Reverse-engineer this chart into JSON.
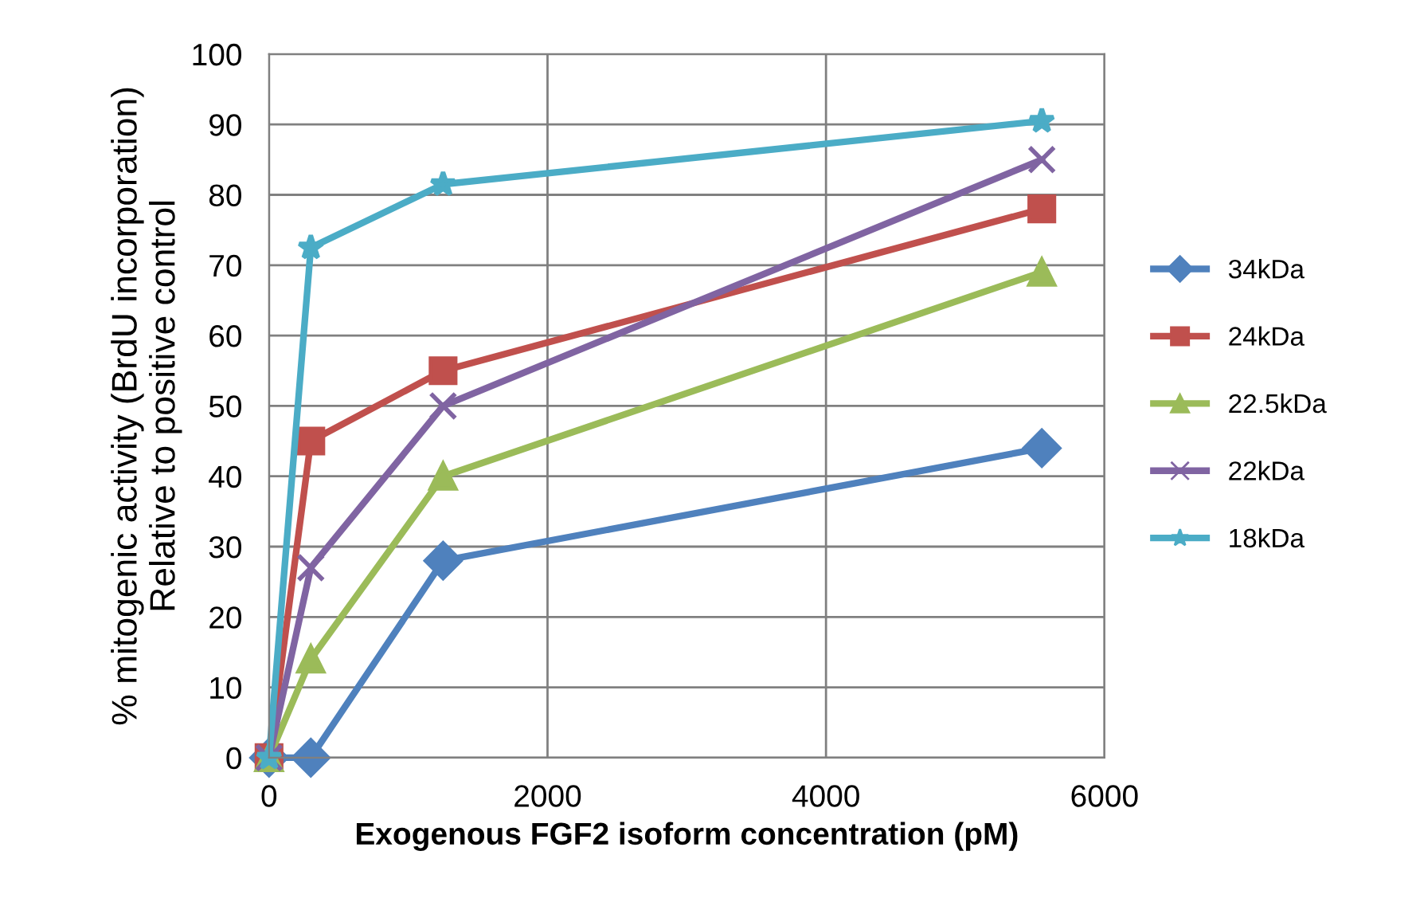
{
  "chart_data": {
    "type": "line",
    "xlabel": "Exogenous FGF2 isoform concentration (pM)",
    "ylabel": "% mitogenic activity (BrdU incorporation)\nRelative to positive control",
    "xlim": [
      0,
      6000
    ],
    "xticks": [
      0,
      2000,
      4000,
      6000
    ],
    "ylim": [
      0,
      100
    ],
    "yticks": [
      0,
      10,
      20,
      30,
      40,
      50,
      60,
      70,
      80,
      90,
      100
    ],
    "grid": true,
    "legend": "right",
    "series": [
      {
        "name": "34kDa",
        "color": "#4f81bd",
        "marker": "diamond",
        "x": [
          0,
          300,
          1250,
          5550
        ],
        "values": [
          0,
          0,
          28,
          44
        ]
      },
      {
        "name": "24kDa",
        "color": "#c0504d",
        "marker": "square",
        "x": [
          0,
          300,
          1250,
          5550
        ],
        "values": [
          0,
          45,
          55,
          78
        ]
      },
      {
        "name": "22.5kDa",
        "color": "#9bbb59",
        "marker": "triangle",
        "x": [
          0,
          300,
          1250,
          5550
        ],
        "values": [
          0,
          14,
          40,
          69
        ]
      },
      {
        "name": "22kDa",
        "color": "#8064a2",
        "marker": "cross",
        "x": [
          0,
          300,
          1250,
          5550
        ],
        "values": [
          0,
          27,
          50,
          85
        ]
      },
      {
        "name": "18kDa",
        "color": "#4bacc6",
        "marker": "star",
        "x": [
          0,
          300,
          1250,
          5550
        ],
        "values": [
          0,
          72.5,
          81.5,
          90.5
        ]
      }
    ]
  }
}
